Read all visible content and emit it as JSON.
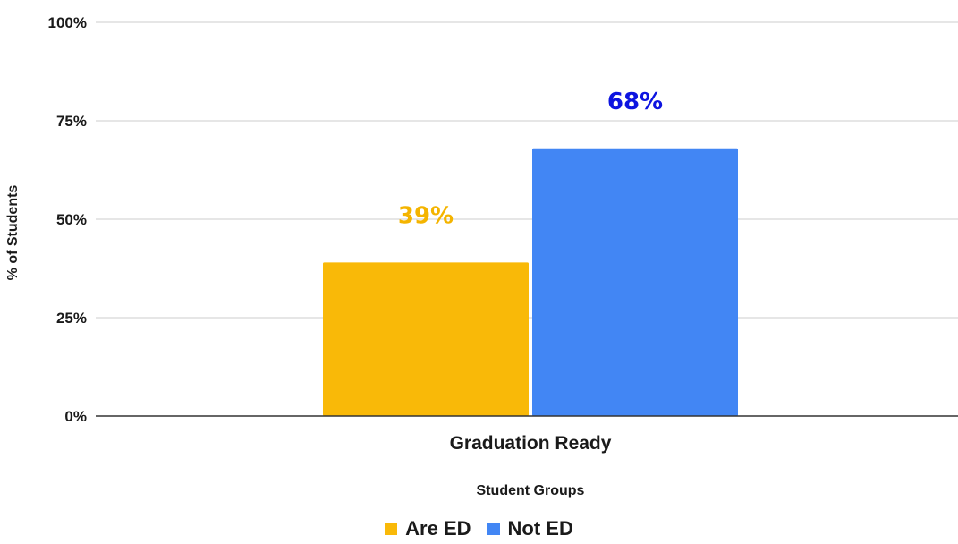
{
  "chart_data": {
    "type": "bar",
    "title": "",
    "xlabel": "Student Groups",
    "ylabel": "% of Students",
    "categories": [
      "Graduation Ready"
    ],
    "yticks": [
      "0%",
      "25%",
      "50%",
      "75%",
      "100%"
    ],
    "ylim": [
      0,
      100
    ],
    "grid": true,
    "legend_position": "bottom",
    "series": [
      {
        "name": "Are ED",
        "values": [
          39
        ],
        "label": "39%",
        "color": "#F9B908",
        "label_color": "#F4B400"
      },
      {
        "name": "Not ED",
        "values": [
          68
        ],
        "label": "68%",
        "color": "#4286F4",
        "label_color": "#0D14E0"
      }
    ]
  },
  "colors": {
    "grid": "#cccccc",
    "axis": "#333333"
  }
}
